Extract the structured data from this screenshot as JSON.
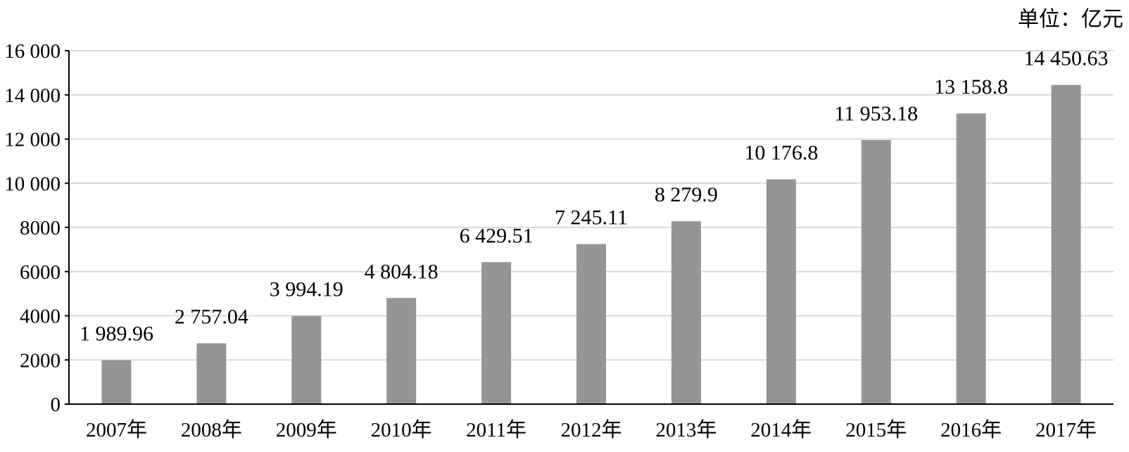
{
  "chart_data": {
    "type": "bar",
    "unit": "单位：亿元",
    "categories": [
      "2007年",
      "2008年",
      "2009年",
      "2010年",
      "2011年",
      "2012年",
      "2013年",
      "2014年",
      "2015年",
      "2016年",
      "2017年"
    ],
    "values": [
      1989.96,
      2757.04,
      3994.19,
      4804.18,
      6429.51,
      7245.11,
      8279.9,
      10176.8,
      11953.18,
      13158.8,
      14450.63
    ],
    "data_labels": [
      "1 989.96",
      "2 757.04",
      "3 994.19",
      "4 804.18",
      "6 429.51",
      "7 245.11",
      "8 279.9",
      "10 176.8",
      "11 953.18",
      "13 158.8",
      "14 450.63"
    ],
    "yticks": [
      0,
      2000,
      4000,
      6000,
      8000,
      10000,
      12000,
      14000,
      16000
    ],
    "ytick_labels": [
      "0",
      "2000",
      "4000",
      "6000",
      "8000",
      "10 000",
      "12 000",
      "14 000",
      "16 000"
    ],
    "ylim": [
      0,
      16000
    ],
    "grid": true,
    "bar_color": "#959595",
    "grid_color": "#d9d9d9",
    "title": "",
    "xlabel": "",
    "ylabel": ""
  }
}
